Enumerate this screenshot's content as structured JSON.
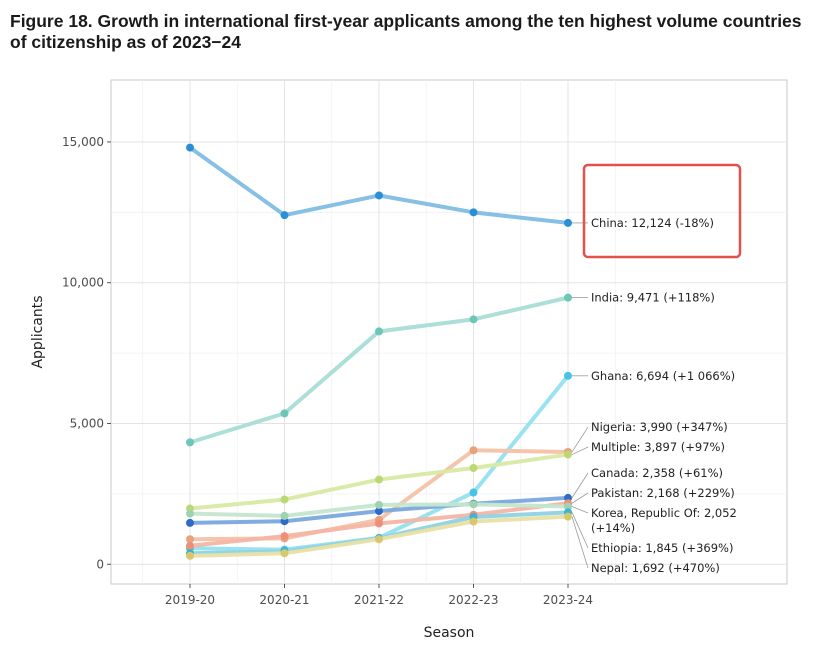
{
  "title": "Figure 18. Growth in international first-year applicants among the ten highest volume countries of citizenship as of 2023−24",
  "chart_data": {
    "type": "line",
    "title": "Figure 18. Growth in international first-year applicants among the ten highest volume countries of citizenship as of 2023−24",
    "xlabel": "Season",
    "ylabel": "Applicants",
    "categories": [
      "2019-20",
      "2020-21",
      "2021-22",
      "2022-23",
      "2023-24"
    ],
    "ylim": [
      -700,
      17200
    ],
    "yticks": [
      0,
      5000,
      10000,
      15000
    ],
    "ytick_labels": [
      "0",
      "5,000",
      "10,000",
      "15,000"
    ],
    "grid": true,
    "legend": "end-of-line labels",
    "series": [
      {
        "name": "China",
        "label_lines": [
          "China: 12,124 (-18%)"
        ],
        "color": "#80bde3",
        "marker": "#2a8fd6",
        "values": [
          14800,
          12400,
          13100,
          12500,
          12124
        ]
      },
      {
        "name": "India",
        "label_lines": [
          "India: 9,471 (+118%)"
        ],
        "color": "#a6ddd5",
        "marker": "#6dc6b8",
        "values": [
          4330,
          5360,
          8270,
          8700,
          9471
        ]
      },
      {
        "name": "Ghana",
        "label_lines": [
          "Ghana: 6,694 (+1 066%)"
        ],
        "color": "#96e0f0",
        "marker": "#47c4e5",
        "values": [
          570,
          520,
          940,
          2550,
          6694
        ]
      },
      {
        "name": "Nigeria",
        "label_lines": [
          "Nigeria: 3,990 (+347%)"
        ],
        "color": "#f3c2a6",
        "marker": "#e8a27c",
        "values": [
          890,
          920,
          1580,
          4050,
          3990
        ]
      },
      {
        "name": "Multiple",
        "label_lines": [
          "Multiple: 3,897 (+97%)"
        ],
        "color": "#d8e9a3",
        "marker": "#bcd874",
        "values": [
          1980,
          2300,
          3010,
          3420,
          3897
        ]
      },
      {
        "name": "Canada",
        "label_lines": [
          "Canada: 2,358 (+61%)"
        ],
        "color": "#7aa8de",
        "marker": "#2e6bc7",
        "values": [
          1470,
          1530,
          1890,
          2150,
          2358
        ]
      },
      {
        "name": "Pakistan",
        "label_lines": [
          "Pakistan: 2,168 (+229%)"
        ],
        "color": "#f4b5a5",
        "marker": "#f08f78",
        "values": [
          660,
          1000,
          1450,
          1760,
          2168
        ]
      },
      {
        "name": "Korea, Republic Of",
        "label_lines": [
          "Korea, Republic Of: 2,052",
          "(+14%)"
        ],
        "color": "#c5e6cf",
        "marker": "#9fd3af",
        "values": [
          1800,
          1720,
          2110,
          2130,
          2052
        ]
      },
      {
        "name": "Ethiopia",
        "label_lines": [
          "Ethiopia: 1,845 (+369%)"
        ],
        "color": "#8fd2e4",
        "marker": "#3fb3cf",
        "values": [
          390,
          460,
          930,
          1680,
          1845
        ]
      },
      {
        "name": "Nepal",
        "label_lines": [
          "Nepal: 1,692 (+470%)"
        ],
        "color": "#e8e0a6",
        "marker": "#d7c86e",
        "values": [
          300,
          390,
          890,
          1520,
          1692
        ]
      }
    ],
    "highlight": {
      "series": "China",
      "color": "#e0524a"
    }
  }
}
